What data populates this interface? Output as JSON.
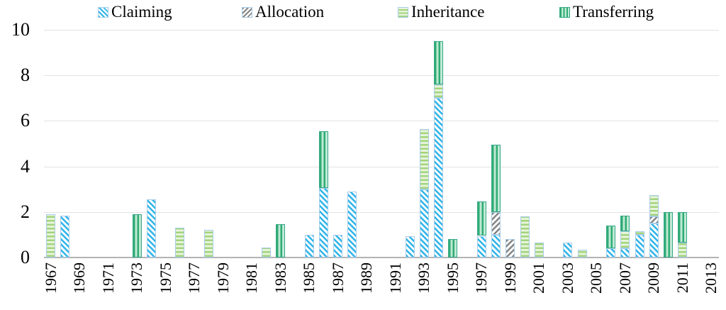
{
  "chart_data": {
    "type": "bar",
    "stacked": true,
    "title": "",
    "xlabel": "",
    "ylabel": "",
    "legend_position": "top",
    "axis": {
      "ylim": [
        0,
        10
      ],
      "y_ticks": [
        0,
        2,
        4,
        6,
        8,
        10
      ],
      "x_range": [
        1967,
        2013
      ],
      "x_tick_labels": [
        "1967",
        "1969",
        "1971",
        "1973",
        "1975",
        "1977",
        "1979",
        "1981",
        "1983",
        "1985",
        "1987",
        "1989",
        "1991",
        "1993",
        "1995",
        "1997",
        "1999",
        "2001",
        "2003",
        "2005",
        "2007",
        "2009",
        "2011",
        "2013"
      ],
      "grid": true
    },
    "stack_order": [
      "claiming",
      "allocation",
      "inheritance",
      "transferring"
    ],
    "series": [
      {
        "key": "claiming",
        "label": "Claiming",
        "pattern": "diagonal-up",
        "stripe_color": "#2EB3E8",
        "bg_color": "#FFFFFF",
        "border_color": "#A8CDEA"
      },
      {
        "key": "allocation",
        "label": "Allocation",
        "pattern": "diagonal-down",
        "stripe_color": "#848484",
        "bg_color": "#FFFFFF",
        "border_color": "#A8CDEA"
      },
      {
        "key": "inheritance",
        "label": "Inheritance",
        "pattern": "horizontal-lines",
        "stripe_color": "#A3D47C",
        "bg_color": "#E7F4DB",
        "border_color": "#A8CDEA"
      },
      {
        "key": "transferring",
        "label": "Transferring",
        "pattern": "vertical-lines",
        "stripe_color": "#2FAC74",
        "bg_color": "#BFE9D4",
        "border_color": "#35A788"
      }
    ],
    "bars": [
      {
        "year": 1967,
        "inheritance": 1.9
      },
      {
        "year": 1968,
        "claiming": 1.85
      },
      {
        "year": 1973,
        "transferring": 1.9
      },
      {
        "year": 1974,
        "claiming": 2.55
      },
      {
        "year": 1976,
        "inheritance": 1.3
      },
      {
        "year": 1978,
        "inheritance": 1.2
      },
      {
        "year": 1982,
        "inheritance": 0.45
      },
      {
        "year": 1983,
        "transferring": 1.45
      },
      {
        "year": 1985,
        "claiming": 1.0
      },
      {
        "year": 1986,
        "claiming": 3.05,
        "transferring": 2.5
      },
      {
        "year": 1987,
        "claiming": 1.0
      },
      {
        "year": 1988,
        "claiming": 2.9
      },
      {
        "year": 1992,
        "claiming": 0.95
      },
      {
        "year": 1993,
        "claiming": 3.0,
        "inheritance": 2.65
      },
      {
        "year": 1994,
        "claiming": 7.0,
        "inheritance": 0.6,
        "transferring": 1.9
      },
      {
        "year": 1995,
        "transferring": 0.8
      },
      {
        "year": 1997,
        "claiming": 0.95,
        "transferring": 1.5
      },
      {
        "year": 1998,
        "claiming": 1.0,
        "allocation": 1.0,
        "transferring": 2.95
      },
      {
        "year": 1999,
        "allocation": 0.8
      },
      {
        "year": 2000,
        "inheritance": 1.8
      },
      {
        "year": 2001,
        "inheritance": 0.65
      },
      {
        "year": 2003,
        "claiming": 0.65
      },
      {
        "year": 2004,
        "inheritance": 0.35
      },
      {
        "year": 2006,
        "claiming": 0.4,
        "transferring": 1.0
      },
      {
        "year": 2007,
        "claiming": 0.4,
        "inheritance": 0.75,
        "transferring": 0.7
      },
      {
        "year": 2008,
        "claiming": 1.0,
        "inheritance": 0.15
      },
      {
        "year": 2009,
        "claiming": 1.5,
        "allocation": 0.3,
        "inheritance": 0.95
      },
      {
        "year": 2010,
        "transferring": 2.0
      },
      {
        "year": 2011,
        "inheritance": 0.65,
        "transferring": 1.35
      }
    ],
    "colors": {
      "gridline": "#E2E2E2",
      "axis_line": "#B3B3B3",
      "text": "#000000",
      "background": "#FFFFFF"
    }
  }
}
